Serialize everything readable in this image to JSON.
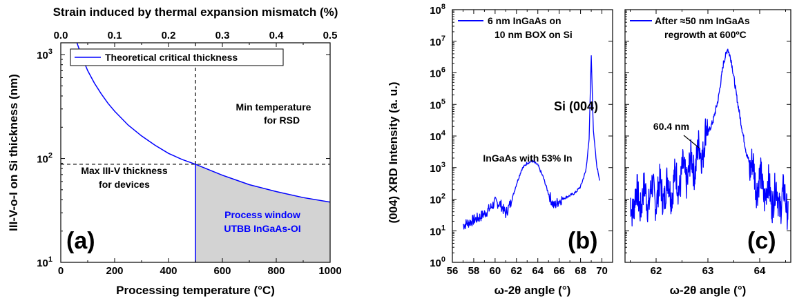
{
  "chart_data": [
    {
      "type": "line",
      "panel_label": "(a)",
      "xlabel": "Processing temperature (°C)",
      "x2label": "Strain induced by thermal expansion mismatch (%)",
      "ylabel": "III-V-o-I on Si thickness (nm)",
      "xlim": [
        0,
        1000
      ],
      "x2lim": [
        0.0,
        0.5
      ],
      "ylim": [
        10,
        1300
      ],
      "yscale": "log",
      "xticks": [
        "0",
        "200",
        "400",
        "600",
        "800",
        "1000"
      ],
      "x2ticks": [
        "0.0",
        "0.1",
        "0.2",
        "0.3",
        "0.4",
        "0.5"
      ],
      "yticks": [
        "10",
        "10",
        "10"
      ],
      "ytick_exponents": [
        "1",
        "2",
        "3"
      ],
      "legend": [
        "Theoretical critical thickness"
      ],
      "legend_position": "top-left",
      "series": [
        {
          "name": "Theoretical critical thickness",
          "color": "#0000ff",
          "x": [
            60,
            80,
            100,
            125,
            150,
            175,
            200,
            250,
            300,
            350,
            400,
            450,
            500,
            600,
            700,
            800,
            900,
            1000
          ],
          "y": [
            1300,
            930,
            700,
            530,
            420,
            340,
            285,
            210,
            165,
            134,
            112,
            98,
            88,
            69,
            56,
            48,
            42,
            38
          ]
        }
      ],
      "reference_lines": {
        "vertical_x": 500,
        "horizontal_y": 88
      },
      "shaded_region": {
        "x_from": 500,
        "x_to": 1000,
        "color": "#d3d3d3"
      },
      "annotations": {
        "min_temp_line1": "Min temperature",
        "min_temp_line2": "for RSD",
        "max_thick_line1": "Max III-V thickness",
        "max_thick_line2": "for devices",
        "process_line1": "Process window",
        "process_line2": "UTBB InGaAs-OI"
      }
    },
    {
      "type": "line",
      "panel_label": "(b)",
      "xlabel": "ω-2θ angle (°)",
      "ylabel": "(004) XRD Intensity (a. u.)",
      "xlim": [
        56,
        71
      ],
      "ylim": [
        1,
        100000000
      ],
      "yscale": "log",
      "xticks": [
        "56",
        "57",
        "58",
        "59",
        "60",
        "61",
        "62",
        "63",
        "64",
        "65",
        "66",
        "67",
        "68",
        "69",
        "70"
      ],
      "yticks": [
        "10",
        "10",
        "10",
        "10",
        "10",
        "10",
        "10",
        "10",
        "10"
      ],
      "ytick_exponents": [
        "0",
        "1",
        "2",
        "3",
        "4",
        "5",
        "6",
        "7",
        "8"
      ],
      "legend": [
        "6 nm InGaAs on",
        "10 nm BOX on Si"
      ],
      "legend_position": "top-left",
      "series": [
        {
          "name": "6 nm InGaAs on 10 nm BOX on Si",
          "color": "#0000ff",
          "x": [
            57.0,
            57.5,
            58.0,
            58.5,
            59.0,
            59.5,
            60.0,
            60.5,
            61.0,
            61.5,
            62.0,
            62.5,
            63.0,
            63.5,
            64.0,
            64.5,
            65.0,
            65.5,
            66.0,
            66.5,
            67.0,
            67.5,
            68.0,
            68.5,
            68.8,
            69.0,
            69.2,
            69.5,
            69.8
          ],
          "y": [
            15,
            18,
            22,
            26,
            35,
            50,
            80,
            70,
            35,
            80,
            300,
            900,
            1400,
            1600,
            1200,
            500,
            150,
            60,
            90,
            110,
            130,
            160,
            250,
            800,
            8000,
            3500000,
            15000,
            1200,
            400
          ]
        }
      ],
      "annotations": {
        "si_peak": "Si (004)",
        "ingaas": "InGaAs with 53% In"
      }
    },
    {
      "type": "line",
      "panel_label": "(c)",
      "xlabel": "ω-2θ angle (°)",
      "xlim": [
        61.4,
        64.6
      ],
      "ylim": [
        1,
        100000000
      ],
      "yscale": "log",
      "xticks": [
        "62",
        "63",
        "64"
      ],
      "legend": [
        "After ≈50 nm InGaAs",
        "regrowth at 600ºC"
      ],
      "legend_position": "top-left",
      "series": [
        {
          "name": "After ≈50 nm InGaAs regrowth at 600ºC",
          "color": "#0000ff",
          "x": [
            61.5,
            61.8,
            62.0,
            62.2,
            62.4,
            62.6,
            62.75,
            62.85,
            63.0,
            63.1,
            63.2,
            63.3,
            63.38,
            63.45,
            63.55,
            63.65,
            63.75,
            63.9,
            64.0,
            64.2,
            64.4,
            64.55
          ],
          "y": [
            80,
            120,
            150,
            200,
            350,
            700,
            1500,
            3000,
            12000,
            30000,
            150000,
            2000000,
            6000000,
            2500000,
            200000,
            20000,
            2500,
            500,
            300,
            150,
            100,
            80
          ]
        }
      ],
      "annotations": {
        "fringe": "60.4 nm"
      }
    }
  ]
}
